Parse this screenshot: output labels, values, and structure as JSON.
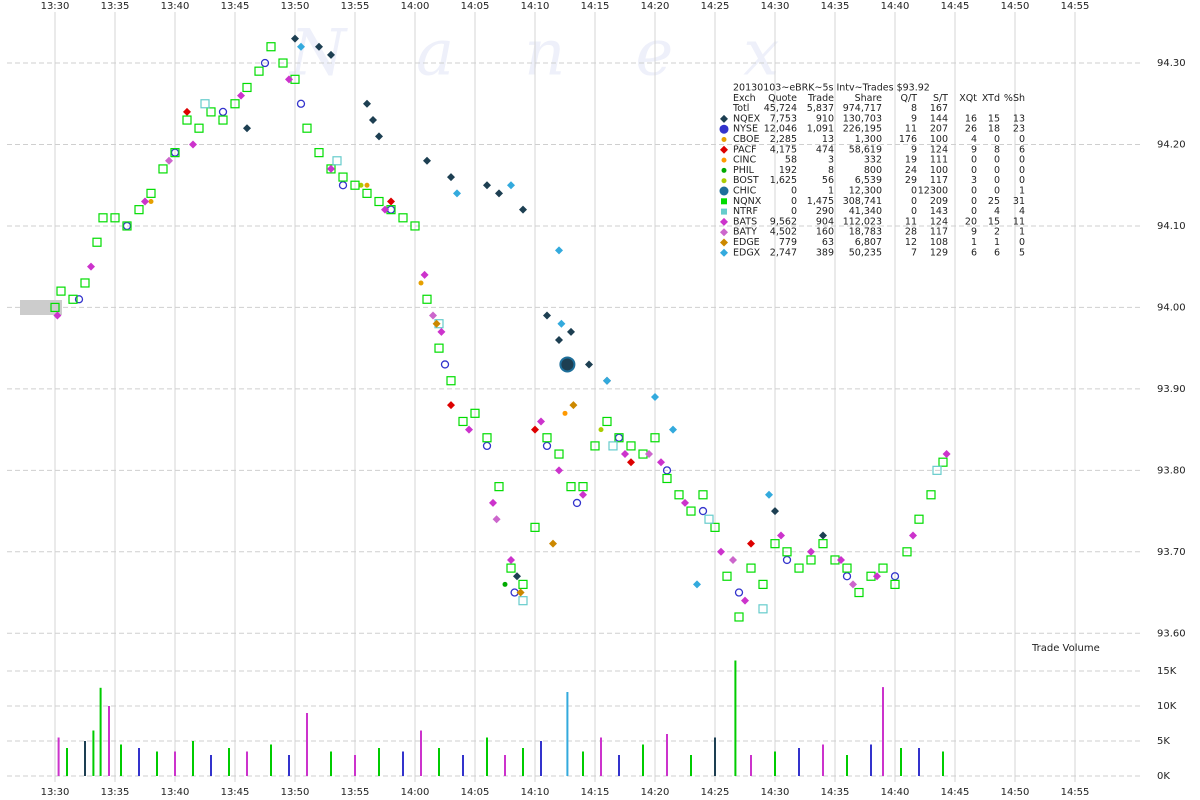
{
  "chart_data": [
    {
      "type": "scatter",
      "title": "20130103~eBRK~5s Intv~Trades $93.92",
      "watermark": "Nanex",
      "xlim": [
        806,
        898
      ],
      "xticks": [
        {
          "value": 810,
          "label": "13:30"
        },
        {
          "value": 815,
          "label": "13:35"
        },
        {
          "value": 820,
          "label": "13:40"
        },
        {
          "value": 825,
          "label": "13:45"
        },
        {
          "value": 830,
          "label": "13:50"
        },
        {
          "value": 835,
          "label": "13:55"
        },
        {
          "value": 840,
          "label": "14:00"
        },
        {
          "value": 845,
          "label": "14:05"
        },
        {
          "value": 850,
          "label": "14:10"
        },
        {
          "value": 855,
          "label": "14:15"
        },
        {
          "value": 860,
          "label": "14:20"
        },
        {
          "value": 865,
          "label": "14:25"
        },
        {
          "value": 870,
          "label": "14:30"
        },
        {
          "value": 875,
          "label": "14:35"
        },
        {
          "value": 880,
          "label": "14:40"
        },
        {
          "value": 885,
          "label": "14:45"
        },
        {
          "value": 890,
          "label": "14:50"
        },
        {
          "value": 895,
          "label": "14:55"
        }
      ],
      "ylim": [
        93.55,
        94.37
      ],
      "yticks": [
        {
          "value": 93.6,
          "label": "93.60"
        },
        {
          "value": 93.7,
          "label": "93.70"
        },
        {
          "value": 93.8,
          "label": "93.80"
        },
        {
          "value": 93.9,
          "label": "93.90"
        },
        {
          "value": 94.0,
          "label": "94.00"
        },
        {
          "value": 94.1,
          "label": "94.10"
        },
        {
          "value": 94.2,
          "label": "94.20"
        },
        {
          "value": 94.3,
          "label": "94.30"
        }
      ],
      "grid": true,
      "table_header": [
        "Exch",
        "Quote",
        "Trade",
        "Share",
        "Q/T",
        "S/T",
        "XQt",
        "XTd",
        "%Sh"
      ],
      "total": {
        "name": "Totl",
        "stats": [
          "45,724",
          "5,837",
          "974,717",
          "8",
          "167"
        ]
      },
      "series": [
        {
          "name": "NQEX",
          "color": "#1d3f52",
          "marker": "diamond",
          "stats": [
            "7,753",
            "910",
            "130,703",
            "9",
            "144",
            "16",
            "15",
            "13"
          ],
          "x": [
            830,
            832,
            833,
            836,
            836.5,
            837,
            841,
            843,
            846,
            847,
            849,
            851,
            852,
            853,
            854.5,
            856,
            870,
            874,
            826,
            848.5
          ],
          "values": [
            94.33,
            94.32,
            94.31,
            94.25,
            94.23,
            94.21,
            94.18,
            94.16,
            94.15,
            94.14,
            94.12,
            93.99,
            93.96,
            93.97,
            93.93,
            93.91,
            93.75,
            93.72,
            94.22,
            93.67
          ]
        },
        {
          "name": "NYSE",
          "color": "#3333cc",
          "marker": "circle",
          "stats": [
            "12,046",
            "1,091",
            "226,195",
            "11",
            "207",
            "26",
            "18",
            "23"
          ],
          "x": [
            812,
            816,
            820,
            824,
            827.5,
            830.5,
            834,
            838,
            842.5,
            846,
            848.3,
            851,
            853.5,
            857,
            861,
            864,
            867,
            871,
            876,
            880
          ],
          "values": [
            94.01,
            94.1,
            94.19,
            94.24,
            94.3,
            94.25,
            94.15,
            94.12,
            93.93,
            93.83,
            93.65,
            93.83,
            93.76,
            93.84,
            93.8,
            93.75,
            93.65,
            93.69,
            93.67,
            93.67
          ]
        },
        {
          "name": "CBOE",
          "color": "#e6a000",
          "marker": "dot",
          "stats": [
            "2,285",
            "13",
            "1,300",
            "176",
            "100",
            "4",
            "0",
            "0"
          ],
          "x": [
            818,
            836,
            840.5
          ],
          "values": [
            94.13,
            94.15,
            94.03
          ]
        },
        {
          "name": "PACF",
          "color": "#dd0000",
          "marker": "diamond",
          "stats": [
            "4,175",
            "474",
            "58,619",
            "9",
            "124",
            "9",
            "8",
            "6"
          ],
          "x": [
            821,
            838,
            843,
            850,
            858,
            868
          ],
          "values": [
            94.24,
            94.13,
            93.88,
            93.85,
            93.81,
            93.71
          ]
        },
        {
          "name": "CINC",
          "color": "#ff9900",
          "marker": "dot",
          "stats": [
            "58",
            "3",
            "332",
            "19",
            "111",
            "0",
            "0",
            "0"
          ],
          "x": [
            852.5
          ],
          "values": [
            93.87
          ]
        },
        {
          "name": "PHIL",
          "color": "#00aa00",
          "marker": "dot",
          "stats": [
            "192",
            "8",
            "800",
            "24",
            "100",
            "0",
            "0",
            "0"
          ],
          "x": [
            847.5
          ],
          "values": [
            93.66
          ]
        },
        {
          "name": "BOST",
          "color": "#aacc00",
          "marker": "dot",
          "stats": [
            "1,625",
            "56",
            "6,539",
            "29",
            "117",
            "3",
            "0",
            "0"
          ],
          "x": [
            835.5,
            855.5
          ],
          "values": [
            94.15,
            93.85
          ]
        },
        {
          "name": "CHIC",
          "color": "#1e6f9a",
          "marker": "bigcircle",
          "stats": [
            "0",
            "1",
            "12,300",
            "0",
            "12300",
            "0",
            "0",
            "1"
          ],
          "x": [
            852.7
          ],
          "values": [
            93.93
          ]
        },
        {
          "name": "NQNX",
          "color": "#00dd00",
          "marker": "square",
          "stats": [
            "0",
            "1,475",
            "308,741",
            "0",
            "209",
            "0",
            "25",
            "31"
          ],
          "x": [
            810,
            810.5,
            811.5,
            812.5,
            813.5,
            814,
            815,
            816,
            817,
            818,
            819,
            820,
            821,
            822,
            823,
            824,
            825,
            826,
            827,
            828,
            829,
            830,
            831,
            832,
            833,
            834,
            835,
            836,
            837,
            838,
            839,
            840,
            841,
            842,
            843,
            844,
            845,
            846,
            847,
            848,
            849,
            850,
            851,
            852,
            853,
            854,
            855,
            856,
            857,
            858,
            859,
            860,
            861,
            862,
            863,
            864,
            865,
            866,
            867,
            868,
            869,
            870,
            871,
            872,
            873,
            874,
            875,
            876,
            877,
            878,
            879,
            880,
            881,
            882,
            883,
            884
          ],
          "values": [
            94.0,
            94.02,
            94.01,
            94.03,
            94.08,
            94.11,
            94.11,
            94.1,
            94.12,
            94.14,
            94.17,
            94.19,
            94.23,
            94.22,
            94.24,
            94.23,
            94.25,
            94.27,
            94.29,
            94.32,
            94.3,
            94.28,
            94.22,
            94.19,
            94.17,
            94.16,
            94.15,
            94.14,
            94.13,
            94.12,
            94.11,
            94.1,
            94.01,
            93.95,
            93.91,
            93.86,
            93.87,
            93.84,
            93.78,
            93.68,
            93.66,
            93.73,
            93.84,
            93.82,
            93.78,
            93.78,
            93.83,
            93.86,
            93.84,
            93.83,
            93.82,
            93.84,
            93.79,
            93.77,
            93.75,
            93.77,
            93.73,
            93.67,
            93.62,
            93.68,
            93.66,
            93.71,
            93.7,
            93.68,
            93.69,
            93.71,
            93.69,
            93.68,
            93.65,
            93.67,
            93.68,
            93.66,
            93.7,
            93.74,
            93.77,
            93.81
          ]
        },
        {
          "name": "NTRF",
          "color": "#66cccc",
          "marker": "square",
          "stats": [
            "0",
            "290",
            "41,340",
            "0",
            "143",
            "0",
            "4",
            "4"
          ],
          "x": [
            822.5,
            833.5,
            842,
            849,
            856.5,
            864.5,
            869,
            883.5
          ],
          "values": [
            94.25,
            94.18,
            93.98,
            93.64,
            93.83,
            93.74,
            93.63,
            93.8
          ]
        },
        {
          "name": "BATS",
          "color": "#cc33cc",
          "marker": "diamond",
          "stats": [
            "9,562",
            "904",
            "112,023",
            "11",
            "124",
            "20",
            "15",
            "11"
          ],
          "x": [
            810.2,
            813,
            817.5,
            821.5,
            825.5,
            829.5,
            833,
            837.5,
            840.8,
            842.2,
            844.5,
            846.5,
            848,
            850.5,
            852,
            854,
            857.5,
            860.5,
            862.5,
            865.5,
            867.5,
            870.5,
            873,
            875.5,
            878.5,
            881.5,
            884.3
          ],
          "values": [
            93.99,
            94.05,
            94.13,
            94.2,
            94.26,
            94.28,
            94.17,
            94.12,
            94.04,
            93.97,
            93.85,
            93.76,
            93.69,
            93.86,
            93.8,
            93.77,
            93.82,
            93.81,
            93.76,
            93.7,
            93.64,
            93.72,
            93.7,
            93.69,
            93.67,
            93.72,
            93.82
          ]
        },
        {
          "name": "BATY",
          "color": "#cc66cc",
          "marker": "diamond",
          "stats": [
            "4,502",
            "160",
            "18,783",
            "28",
            "117",
            "9",
            "2",
            "1"
          ],
          "x": [
            819.5,
            841.5,
            846.8,
            859.5,
            866.5,
            876.5
          ],
          "values": [
            94.18,
            93.99,
            93.74,
            93.82,
            93.69,
            93.66
          ]
        },
        {
          "name": "EDGE",
          "color": "#cc8800",
          "marker": "diamond",
          "stats": [
            "779",
            "63",
            "6,807",
            "12",
            "108",
            "1",
            "1",
            "0"
          ],
          "x": [
            841.8,
            848.8,
            851.5,
            853.2
          ],
          "values": [
            93.98,
            93.65,
            93.71,
            93.88
          ]
        },
        {
          "name": "EDGX",
          "color": "#33aadd",
          "marker": "diamond",
          "stats": [
            "2,747",
            "389",
            "50,235",
            "7",
            "129",
            "6",
            "6",
            "5"
          ],
          "x": [
            830.5,
            843.5,
            848,
            852,
            852.2,
            856,
            860,
            861.5,
            869.5,
            863.5
          ],
          "values": [
            94.32,
            94.14,
            94.15,
            94.07,
            93.98,
            93.91,
            93.89,
            93.85,
            93.77,
            93.66
          ]
        }
      ]
    },
    {
      "type": "bar",
      "title": "Trade Volume",
      "xlim": [
        806,
        898
      ],
      "ylim": [
        0,
        15000
      ],
      "yticks": [
        {
          "value": 0,
          "label": "0K"
        },
        {
          "value": 5000,
          "label": "5K"
        },
        {
          "value": 10000,
          "label": "10K"
        },
        {
          "value": 15000,
          "label": "15K"
        }
      ],
      "x": [
        810.3,
        811,
        812.5,
        813.2,
        813.8,
        814.5,
        815.5,
        817,
        818.5,
        820,
        821.5,
        823,
        824.5,
        826,
        828,
        829.5,
        831,
        833,
        835,
        837,
        839,
        840.5,
        842,
        844,
        846,
        847.5,
        849,
        850.5,
        852.7,
        854,
        855.5,
        857,
        859,
        861,
        863,
        865,
        866.7,
        868,
        870,
        872,
        874,
        876,
        878,
        879,
        880.5,
        882,
        884
      ],
      "values": [
        5500,
        4000,
        5000,
        6500,
        12600,
        10000,
        4500,
        4000,
        3500,
        3500,
        5000,
        3000,
        4000,
        3500,
        4500,
        3000,
        9000,
        3500,
        3000,
        4000,
        3500,
        6500,
        4000,
        3000,
        5500,
        3000,
        4000,
        5000,
        12000,
        3500,
        5500,
        3000,
        4500,
        6000,
        3000,
        5500,
        16500,
        3000,
        3500,
        4000,
        4500,
        3000,
        4500,
        12700,
        4000,
        4000,
        3500
      ],
      "colors": [
        "#cc33cc",
        "#00cc00",
        "#1d3f52",
        "#00cc00",
        "#00cc00",
        "#cc33cc",
        "#00cc00",
        "#3333cc",
        "#00cc00",
        "#cc33cc",
        "#00cc00",
        "#3333cc",
        "#00cc00",
        "#cc33cc",
        "#00cc00",
        "#3333cc",
        "#cc33cc",
        "#00cc00",
        "#cc33cc",
        "#00cc00",
        "#3333cc",
        "#cc33cc",
        "#00cc00",
        "#3333cc",
        "#00cc00",
        "#cc33cc",
        "#00cc00",
        "#3333cc",
        "#33aadd",
        "#00cc00",
        "#cc33cc",
        "#3333cc",
        "#00cc00",
        "#cc33cc",
        "#00cc00",
        "#1d3f52",
        "#00cc00",
        "#cc33cc",
        "#00cc00",
        "#3333cc",
        "#cc33cc",
        "#00cc00",
        "#3333cc",
        "#cc33cc",
        "#00cc00",
        "#3333cc",
        "#00cc00"
      ]
    }
  ]
}
